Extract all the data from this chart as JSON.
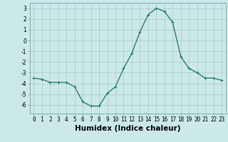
{
  "x": [
    0,
    1,
    2,
    3,
    4,
    5,
    6,
    7,
    8,
    9,
    10,
    11,
    12,
    13,
    14,
    15,
    16,
    17,
    18,
    19,
    20,
    21,
    22,
    23
  ],
  "y": [
    -3.5,
    -3.6,
    -3.9,
    -3.9,
    -3.9,
    -4.3,
    -5.7,
    -6.1,
    -6.1,
    -4.9,
    -4.3,
    -2.6,
    -1.2,
    0.8,
    2.4,
    3.0,
    2.7,
    1.7,
    -1.5,
    -2.6,
    -3.0,
    -3.5,
    -3.5,
    -3.7
  ],
  "xlabel": "Humidex (Indice chaleur)",
  "bg_color": "#cce8e8",
  "grid_color": "#b0cdcd",
  "line_color": "#2e7d6e",
  "ylim": [
    -6.8,
    3.5
  ],
  "xlim": [
    -0.5,
    23.5
  ],
  "yticks": [
    -6,
    -5,
    -4,
    -3,
    -2,
    -1,
    0,
    1,
    2,
    3
  ],
  "xticks": [
    0,
    1,
    2,
    3,
    4,
    5,
    6,
    7,
    8,
    9,
    10,
    11,
    12,
    13,
    14,
    15,
    16,
    17,
    18,
    19,
    20,
    21,
    22,
    23
  ],
  "xtick_labels": [
    "0",
    "1",
    "2",
    "3",
    "4",
    "5",
    "6",
    "7",
    "8",
    "9",
    "10",
    "11",
    "12",
    "13",
    "14",
    "15",
    "16",
    "17",
    "18",
    "19",
    "20",
    "21",
    "22",
    "23"
  ],
  "tick_fontsize": 5.5,
  "xlabel_fontsize": 7.5,
  "line_width": 1.0,
  "marker_size": 2.5
}
